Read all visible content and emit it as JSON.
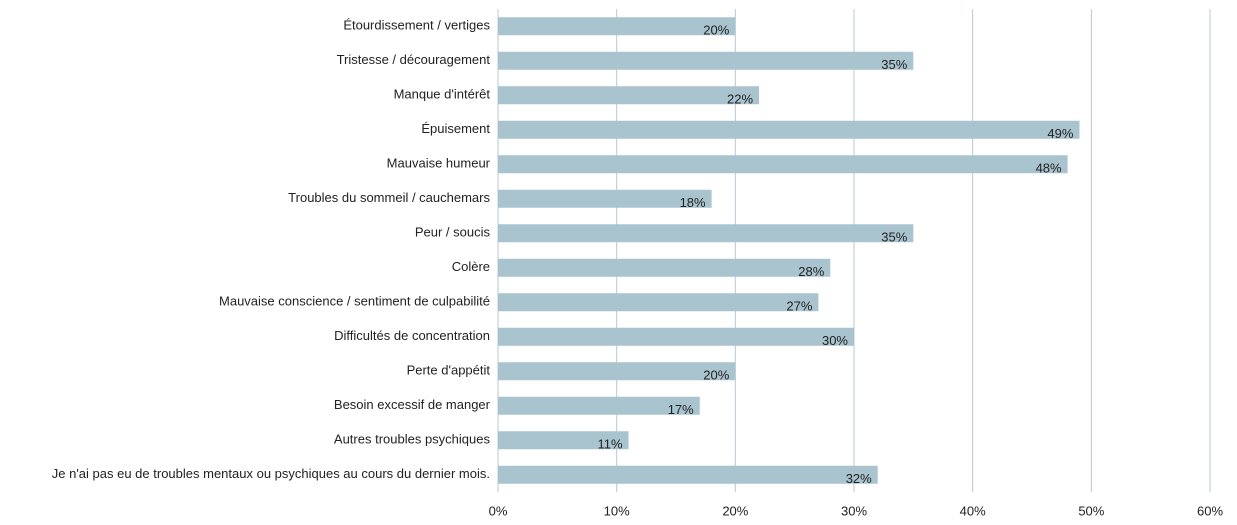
{
  "chart_data": {
    "type": "barh",
    "categories": [
      "Étourdissement / vertiges",
      "Tristesse / découragement",
      "Manque d'intérêt",
      "Épuisement",
      "Mauvaise humeur",
      "Troubles du sommeil / cauchemars",
      "Peur / soucis",
      "Colère",
      "Mauvaise conscience / sentiment de culpabilité",
      "Difficultés de concentration",
      "Perte d'appétit",
      "Besoin excessif de manger",
      "Autres troubles psychiques",
      "Je n'ai pas eu de troubles mentaux ou psychiques au cours du dernier mois."
    ],
    "values": [
      20,
      35,
      22,
      49,
      48,
      18,
      35,
      28,
      27,
      30,
      20,
      17,
      11,
      32
    ],
    "value_labels": [
      "20%",
      "35%",
      "22%",
      "49%",
      "48%",
      "18%",
      "35%",
      "28%",
      "27%",
      "30%",
      "20%",
      "17%",
      "11%",
      "32%"
    ],
    "color": "#a9c4cf",
    "xlim": [
      0,
      60
    ],
    "xticks": [
      {
        "value": 0,
        "label": "0%"
      },
      {
        "value": 10,
        "label": "10%"
      },
      {
        "value": 20,
        "label": "20%"
      },
      {
        "value": 30,
        "label": "30%"
      },
      {
        "value": 40,
        "label": "40%"
      },
      {
        "value": 50,
        "label": "50%"
      },
      {
        "value": 60,
        "label": "60%"
      }
    ],
    "grid": true
  }
}
